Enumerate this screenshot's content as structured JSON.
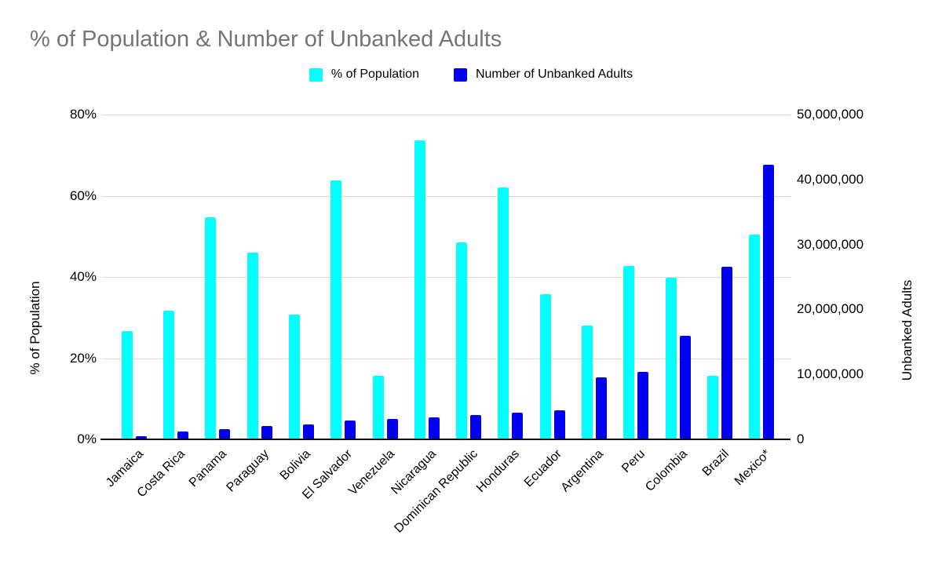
{
  "title": "% of Population & Number of Unbanked Adults",
  "legend": {
    "items": [
      {
        "label": "% of Population",
        "color": "#00ffff"
      },
      {
        "label": "Number of Unbanked Adults",
        "color": "#0000ee"
      }
    ]
  },
  "left_axis": {
    "title": "% of Population",
    "ticks": [
      "0%",
      "20%",
      "40%",
      "60%",
      "80%"
    ],
    "min": 0,
    "max": 80
  },
  "right_axis": {
    "title": "Unbanked Adults",
    "ticks": [
      "0",
      "10,000,000",
      "20,000,000",
      "30,000,000",
      "40,000,000",
      "50,000,000"
    ],
    "min": 0,
    "max": 50000000
  },
  "chart_data": {
    "type": "bar",
    "title": "% of Population & Number of Unbanked Adults",
    "categories": [
      "Jamaica",
      "Costa Rica",
      "Panama",
      "Paraguay",
      "Bolivia",
      "El Salvador",
      "Venezuela",
      "Nicaragua",
      "Dominican Republic",
      "Honduras",
      "Ecuador",
      "Argentina",
      "Peru",
      "Colombia",
      "Brazil",
      "Mexico*"
    ],
    "series": [
      {
        "name": "% of Population",
        "axis": "left",
        "color": "#00ffff",
        "values": [
          26.7,
          31.7,
          54.6,
          46.0,
          30.7,
          63.7,
          15.6,
          73.7,
          48.6,
          62.0,
          35.7,
          28.0,
          42.7,
          39.8,
          15.6,
          50.4
        ]
      },
      {
        "name": "Number of Unbanked Adults",
        "axis": "right",
        "color": "#0000ee",
        "values": [
          500000,
          1250000,
          1600000,
          2100000,
          2350000,
          2950000,
          3150000,
          3350000,
          3700000,
          4050000,
          4450000,
          9600000,
          10400000,
          15900000,
          26600000,
          42300000
        ]
      }
    ],
    "left_ylim": [
      0,
      80
    ],
    "right_ylim": [
      0,
      50000000
    ],
    "grid": true,
    "legend_position": "top",
    "xlabel_rotation": -45
  }
}
